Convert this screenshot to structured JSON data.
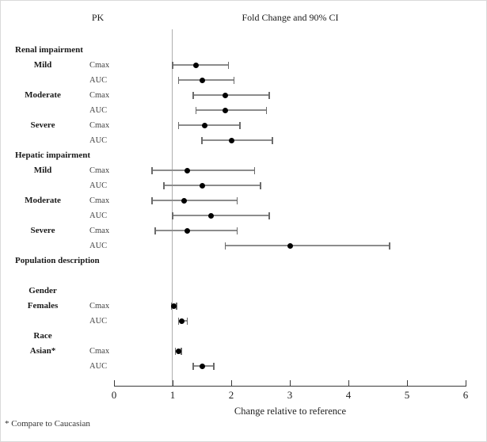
{
  "header": {
    "pk_label": "PK",
    "title": "Fold Change and 90% CI"
  },
  "axis": {
    "label": "Change relative to reference",
    "min": 0,
    "max": 6,
    "ticks": [
      0,
      1,
      2,
      3,
      4,
      5,
      6
    ],
    "reference_value": 1
  },
  "footnote": "* Compare to Caucasian",
  "chart_data": {
    "type": "forest",
    "title": "Fold Change and 90% CI",
    "xlabel": "Change relative to reference",
    "xlim": [
      0,
      6
    ],
    "reference_line": 1,
    "grid": false,
    "rows": [
      {
        "kind": "section",
        "label": "Renal impairment"
      },
      {
        "kind": "data",
        "group": "Mild",
        "param": "Cmax",
        "est": 1.4,
        "lo": 1.0,
        "hi": 1.95
      },
      {
        "kind": "data",
        "group": "",
        "param": "AUC",
        "est": 1.5,
        "lo": 1.1,
        "hi": 2.05
      },
      {
        "kind": "data",
        "group": "Moderate",
        "param": "Cmax",
        "est": 1.9,
        "lo": 1.35,
        "hi": 2.65
      },
      {
        "kind": "data",
        "group": "",
        "param": "AUC",
        "est": 1.9,
        "lo": 1.4,
        "hi": 2.6
      },
      {
        "kind": "data",
        "group": "Severe",
        "param": "Cmax",
        "est": 1.55,
        "lo": 1.1,
        "hi": 2.15
      },
      {
        "kind": "data",
        "group": "",
        "param": "AUC",
        "est": 2.0,
        "lo": 1.5,
        "hi": 2.7
      },
      {
        "kind": "section",
        "label": "Hepatic impairment"
      },
      {
        "kind": "data",
        "group": "Mild",
        "param": "Cmax",
        "est": 1.25,
        "lo": 0.65,
        "hi": 2.4
      },
      {
        "kind": "data",
        "group": "",
        "param": "AUC",
        "est": 1.5,
        "lo": 0.85,
        "hi": 2.5
      },
      {
        "kind": "data",
        "group": "Moderate",
        "param": "Cmax",
        "est": 1.2,
        "lo": 0.65,
        "hi": 2.1
      },
      {
        "kind": "data",
        "group": "",
        "param": "AUC",
        "est": 1.65,
        "lo": 1.0,
        "hi": 2.65
      },
      {
        "kind": "data",
        "group": "Severe",
        "param": "Cmax",
        "est": 1.25,
        "lo": 0.7,
        "hi": 2.1
      },
      {
        "kind": "data",
        "group": "",
        "param": "AUC",
        "est": 3.0,
        "lo": 1.9,
        "hi": 4.7
      },
      {
        "kind": "section",
        "label": "Population description"
      },
      {
        "kind": "spacer",
        "label": ""
      },
      {
        "kind": "subheader",
        "label": "Gender"
      },
      {
        "kind": "data",
        "group": "Females",
        "param": "Cmax",
        "est": 1.02,
        "lo": 0.98,
        "hi": 1.07
      },
      {
        "kind": "data",
        "group": "",
        "param": "AUC",
        "est": 1.15,
        "lo": 1.1,
        "hi": 1.25
      },
      {
        "kind": "subheader",
        "label": "Race"
      },
      {
        "kind": "data",
        "group": "Asian*",
        "param": "Cmax",
        "est": 1.1,
        "lo": 1.05,
        "hi": 1.15
      },
      {
        "kind": "data",
        "group": "",
        "param": "AUC",
        "est": 1.5,
        "lo": 1.35,
        "hi": 1.7
      }
    ]
  }
}
